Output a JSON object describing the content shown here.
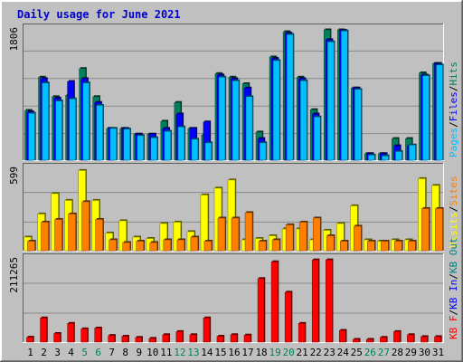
{
  "chart_data": {
    "type": "bar",
    "title": "Daily usage for June 2021",
    "x": [
      "1",
      "2",
      "3",
      "4",
      "5",
      "6",
      "7",
      "8",
      "9",
      "10",
      "11",
      "12",
      "13",
      "14",
      "15",
      "16",
      "17",
      "18",
      "19",
      "20",
      "21",
      "22",
      "23",
      "24",
      "25",
      "26",
      "27",
      "28",
      "29",
      "30",
      "31"
    ],
    "weekend_days": [
      "5",
      "6",
      "12",
      "13",
      "19",
      "20",
      "26",
      "27"
    ],
    "colors": {
      "hits": "#00805c",
      "files": "#0000ff",
      "pages": "#00c0ff",
      "visits": "#ffff00",
      "sites": "#ff8000",
      "kbin": "#0000ff",
      "kbout": "#008080",
      "kbf": "#ff0000",
      "weekday_label": "#000000",
      "weekend_label": "#00805c",
      "title": "#0000cc",
      "frame_bg": "#c0c0c0"
    },
    "panels": [
      {
        "scale_label": "1806",
        "ylim": [
          0,
          1806
        ],
        "legend": [
          {
            "text": "Pages",
            "color": "#00c0ff"
          },
          {
            "text": "/",
            "color": "#000000"
          },
          {
            "text": "Files",
            "color": "#0000ff"
          },
          {
            "text": "/",
            "color": "#000000"
          },
          {
            "text": "Hits",
            "color": "#00805c"
          }
        ],
        "series": [
          {
            "name": "Hits",
            "color": "#00805c",
            "values": [
              690,
              1150,
              880,
              900,
              1270,
              880,
              440,
              440,
              360,
              360,
              540,
              800,
              440,
              350,
              1200,
              1150,
              1060,
              390,
              1430,
              1780,
              1150,
              700,
              1820,
              1820,
              1000,
              90,
              90,
              300,
              300,
              1210,
              1340
            ]
          },
          {
            "name": "Files",
            "color": "#0000ff",
            "values": [
              670,
              1130,
              860,
              1090,
              1130,
              800,
              440,
              440,
              360,
              360,
              440,
              640,
              440,
              530,
              1180,
              1130,
              1000,
              300,
              1410,
              1760,
              1130,
              640,
              1670,
              1800,
              1000,
              90,
              90,
              200,
              200,
              1180,
              1340
            ]
          },
          {
            "name": "Pages",
            "color": "#00c0ff",
            "values": [
              650,
              1070,
              820,
              850,
              1070,
              760,
              440,
              430,
              340,
              310,
              400,
              460,
              290,
              240,
              1150,
              1100,
              880,
              240,
              1380,
              1740,
              1100,
              600,
              1640,
              1790,
              980,
              70,
              60,
              120,
              210,
              1170,
              1320
            ]
          }
        ]
      },
      {
        "scale_label": "599",
        "ylim": [
          0,
          599
        ],
        "legend": [
          {
            "text": "Visits",
            "color": "#ffff00"
          },
          {
            "text": "/",
            "color": "#000000"
          },
          {
            "text": "Sites",
            "color": "#ff8000"
          }
        ],
        "series": [
          {
            "name": "Visits",
            "color": "#ffff00",
            "values": [
              100,
              270,
              420,
              370,
              590,
              370,
              130,
              220,
              100,
              90,
              200,
              210,
              140,
              410,
              460,
              520,
              80,
              90,
              110,
              160,
              160,
              80,
              150,
              200,
              330,
              80,
              70,
              80,
              80,
              530,
              480
            ]
          },
          {
            "name": "Sites",
            "color": "#ff8000",
            "values": [
              70,
              210,
              230,
              270,
              360,
              230,
              80,
              60,
              70,
              60,
              80,
              80,
              100,
              70,
              240,
              240,
              280,
              70,
              80,
              190,
              210,
              240,
              110,
              70,
              180,
              70,
              70,
              70,
              70,
              310,
              310
            ]
          }
        ]
      },
      {
        "scale_label": "211265",
        "ylim": [
          0,
          211265
        ],
        "legend": [
          {
            "text": "KB F",
            "color": "#ff0000"
          },
          {
            "text": "/",
            "color": "#000000"
          },
          {
            "text": "KB In",
            "color": "#0000ff"
          },
          {
            "text": "/",
            "color": "#000000"
          },
          {
            "text": "KB Out",
            "color": "#008080"
          }
        ],
        "series": [
          {
            "name": "KB F",
            "color": "#ff0000",
            "values": [
              12500,
              62000,
              22000,
              48000,
              34000,
              36000,
              17000,
              15000,
              12000,
              9500,
              19000,
              27000,
              19000,
              62000,
              15000,
              19000,
              18000,
              163000,
              206000,
              128000,
              48000,
              211000,
              211000,
              30000,
              7000,
              7000,
              12000,
              27000,
              19000,
              14000,
              14000
            ]
          }
        ]
      }
    ]
  }
}
